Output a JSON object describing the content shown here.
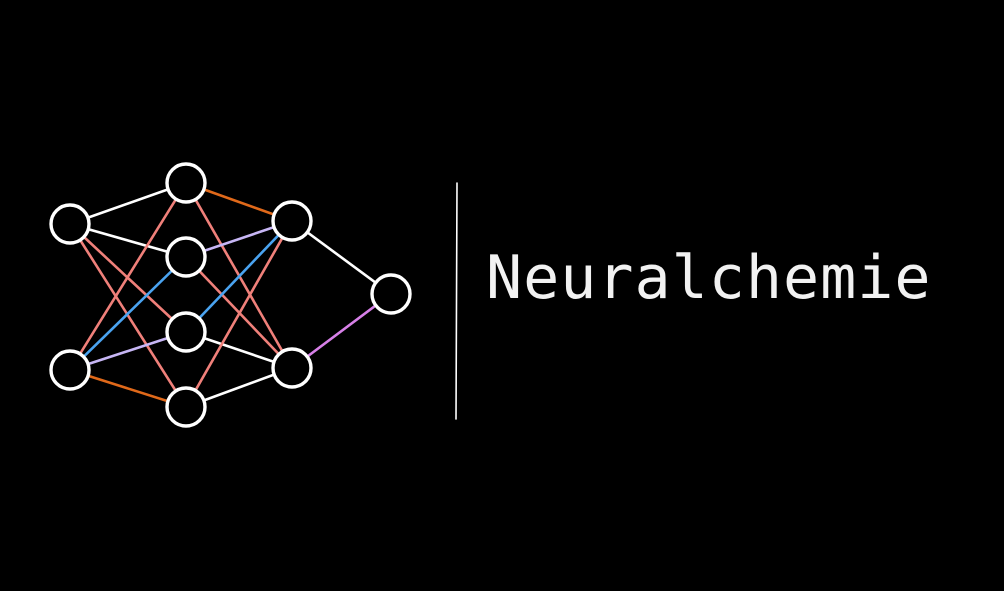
{
  "brand": {
    "name": "Neuralchemie"
  },
  "colors": {
    "background": "#000000",
    "node_stroke": "#ffffff",
    "divider": "#ffffff",
    "edge_white": "#ffffff",
    "edge_pink": "#f0807a",
    "edge_blue": "#4aa3f0",
    "edge_orange": "#e0691a",
    "edge_lavender": "#c7b6f5",
    "edge_magenta": "#d780e8"
  },
  "network": {
    "layers": [
      2,
      4,
      2,
      1
    ],
    "edges": [
      {
        "from": [
          0,
          0
        ],
        "to": [
          1,
          0
        ],
        "color": "edge_white"
      },
      {
        "from": [
          0,
          0
        ],
        "to": [
          1,
          1
        ],
        "color": "edge_white"
      },
      {
        "from": [
          0,
          0
        ],
        "to": [
          1,
          2
        ],
        "color": "edge_pink"
      },
      {
        "from": [
          0,
          0
        ],
        "to": [
          1,
          3
        ],
        "color": "edge_pink"
      },
      {
        "from": [
          0,
          1
        ],
        "to": [
          1,
          0
        ],
        "color": "edge_pink"
      },
      {
        "from": [
          0,
          1
        ],
        "to": [
          1,
          1
        ],
        "color": "edge_blue"
      },
      {
        "from": [
          0,
          1
        ],
        "to": [
          1,
          2
        ],
        "color": "edge_lavender"
      },
      {
        "from": [
          0,
          1
        ],
        "to": [
          1,
          3
        ],
        "color": "edge_orange"
      },
      {
        "from": [
          1,
          0
        ],
        "to": [
          2,
          0
        ],
        "color": "edge_orange"
      },
      {
        "from": [
          1,
          0
        ],
        "to": [
          2,
          1
        ],
        "color": "edge_pink"
      },
      {
        "from": [
          1,
          1
        ],
        "to": [
          2,
          0
        ],
        "color": "edge_lavender"
      },
      {
        "from": [
          1,
          1
        ],
        "to": [
          2,
          1
        ],
        "color": "edge_pink"
      },
      {
        "from": [
          1,
          2
        ],
        "to": [
          2,
          0
        ],
        "color": "edge_blue"
      },
      {
        "from": [
          1,
          2
        ],
        "to": [
          2,
          1
        ],
        "color": "edge_white"
      },
      {
        "from": [
          1,
          3
        ],
        "to": [
          2,
          0
        ],
        "color": "edge_pink"
      },
      {
        "from": [
          1,
          3
        ],
        "to": [
          2,
          1
        ],
        "color": "edge_white"
      },
      {
        "from": [
          2,
          0
        ],
        "to": [
          3,
          0
        ],
        "color": "edge_white"
      },
      {
        "from": [
          2,
          1
        ],
        "to": [
          3,
          0
        ],
        "color": "edge_magenta"
      }
    ]
  }
}
